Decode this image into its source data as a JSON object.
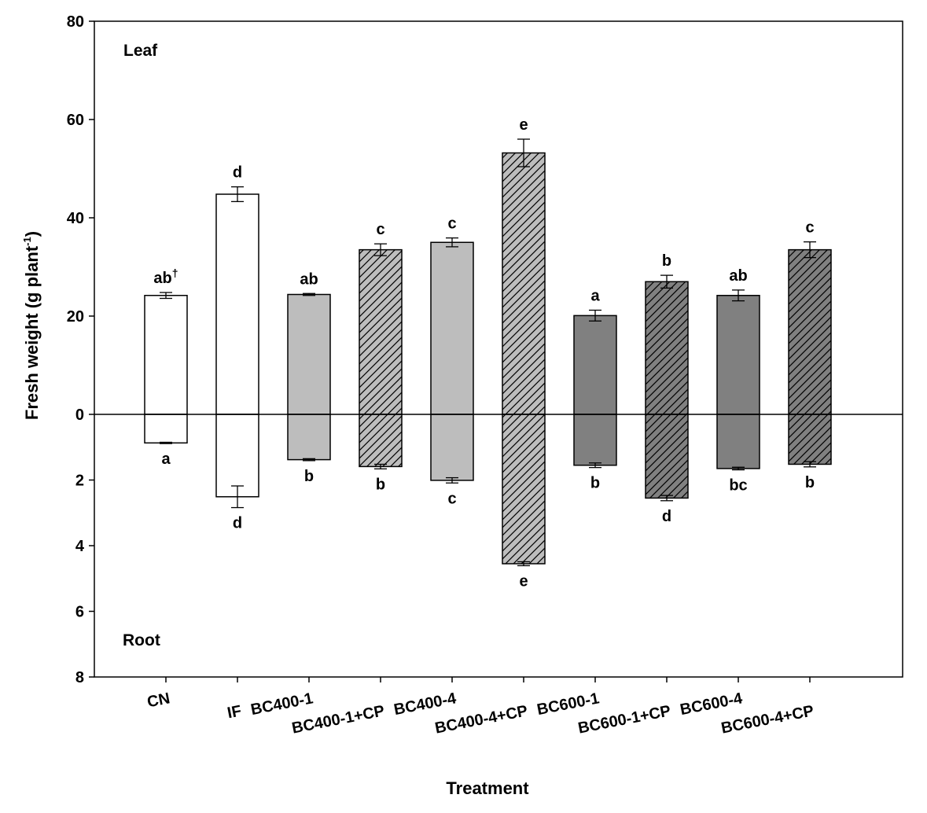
{
  "chart_data": {
    "type": "bar",
    "ylabel": "Fresh weight (g plant",
    "ylabel_sup": "-1",
    "ylabel_end": ")",
    "xlabel": "Treatment",
    "top_panel_label": "Leaf",
    "bottom_panel_label": "Root",
    "leaf_axis": {
      "min": 0,
      "max": 80,
      "ticks": [
        "0",
        "20",
        "40",
        "60",
        "80"
      ]
    },
    "root_axis": {
      "min": 0,
      "max": 8,
      "ticks": [
        "2",
        "4",
        "6",
        "8"
      ]
    },
    "categories": [
      "CN",
      "IF",
      "BC400-1",
      "BC400-1+CP",
      "BC400-4",
      "BC400-4+CP",
      "BC600-1",
      "BC600-1+CP",
      "BC600-4",
      "BC600-4+CP"
    ],
    "fills": [
      "#ffffff",
      "#ffffff",
      "#bdbdbd",
      "#bdbdbd",
      "#bdbdbd",
      "#bdbdbd",
      "#808080",
      "#808080",
      "#808080",
      "#808080"
    ],
    "hatched": [
      false,
      false,
      false,
      true,
      false,
      true,
      false,
      true,
      false,
      true
    ],
    "leaf": {
      "values": [
        24.2,
        44.8,
        24.4,
        33.5,
        35.0,
        53.2,
        20.1,
        27.0,
        24.2,
        33.5
      ],
      "errors": [
        0.6,
        1.5,
        0.2,
        1.2,
        0.9,
        2.8,
        1.1,
        1.3,
        1.1,
        1.6
      ],
      "letters": [
        "ab",
        "d",
        "ab",
        "c",
        "c",
        "e",
        "a",
        "b",
        "ab",
        "c"
      ]
    },
    "root": {
      "values": [
        0.87,
        2.51,
        1.38,
        1.59,
        2.01,
        4.55,
        1.55,
        2.55,
        1.65,
        1.52
      ],
      "errors": [
        0.02,
        0.33,
        0.03,
        0.07,
        0.08,
        0.06,
        0.07,
        0.08,
        0.04,
        0.08
      ],
      "letters": [
        "a",
        "d",
        "b",
        "b",
        "c",
        "e",
        "b",
        "d",
        "bc",
        "b"
      ]
    },
    "footnote_mark": "†"
  }
}
